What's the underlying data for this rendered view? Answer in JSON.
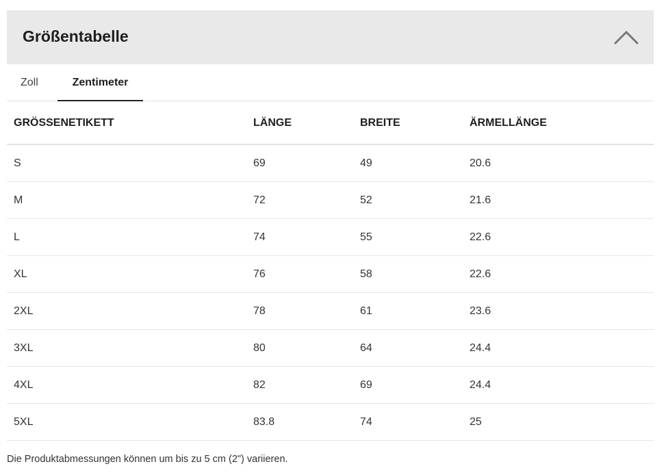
{
  "header": {
    "title": "Größentabelle",
    "collapse_icon": "chevron-up-icon"
  },
  "tabs": [
    {
      "label": "Zoll",
      "active": false
    },
    {
      "label": "Zentimeter",
      "active": true
    }
  ],
  "table": {
    "columns": [
      "GRÖSSENETIKETT",
      "LÄNGE",
      "BREITE",
      "ÄRMELLÄNGE"
    ],
    "rows": [
      [
        "S",
        "69",
        "49",
        "20.6"
      ],
      [
        "M",
        "72",
        "52",
        "21.6"
      ],
      [
        "L",
        "74",
        "55",
        "22.6"
      ],
      [
        "XL",
        "76",
        "58",
        "22.6"
      ],
      [
        "2XL",
        "78",
        "61",
        "23.6"
      ],
      [
        "3XL",
        "80",
        "64",
        "24.4"
      ],
      [
        "4XL",
        "82",
        "69",
        "24.4"
      ],
      [
        "5XL",
        "83.8",
        "74",
        "25"
      ]
    ]
  },
  "footer": {
    "note": "Die Produktabmessungen können um bis zu 5 cm (2\") variieren."
  }
}
